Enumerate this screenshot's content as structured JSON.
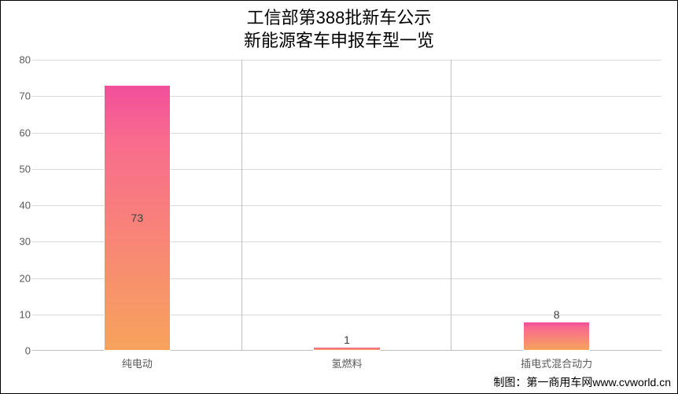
{
  "chart": {
    "type": "bar",
    "title_line1": "工信部第388批新车公示",
    "title_line2": "新能源客车申报车型一览",
    "title_fontsize": 22,
    "categories": [
      "纯电动",
      "氢燃料",
      "插电式混合动力"
    ],
    "values": [
      73,
      1,
      8
    ],
    "bar_gradient_top": "#f24f9b",
    "bar_gradient_mid": "#f86b8e",
    "bar_gradient_bottom": "#f7a35c",
    "ylim_min": 0,
    "ylim_max": 80,
    "ytick_step": 10,
    "yticks": [
      0,
      10,
      20,
      30,
      40,
      50,
      60,
      70,
      80
    ],
    "background_color": "#ffffff",
    "grid_color": "#d9d9d9",
    "axis_color": "#bfbfbf",
    "label_fontsize": 13,
    "value_label_fontsize": 14,
    "bar_width_ratio": 0.32
  },
  "credit": "制图：第一商用车网www.cvworld.cn"
}
